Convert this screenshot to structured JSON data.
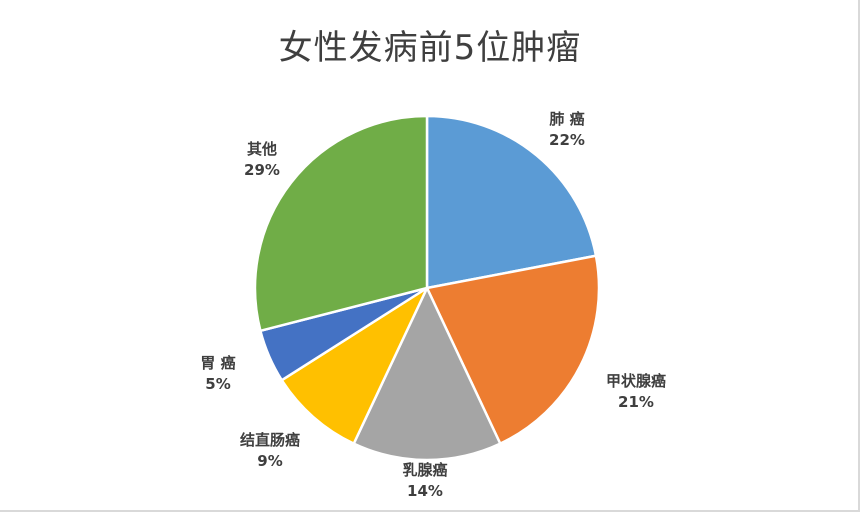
{
  "chart_data": {
    "type": "pie",
    "title": "女性发病前5位肿瘤",
    "categories": [
      "肺 癌",
      "甲状腺癌",
      "乳腺癌",
      "结直肠癌",
      "胃 癌",
      "其他"
    ],
    "values": [
      22,
      21,
      14,
      9,
      5,
      29
    ],
    "value_labels": [
      "22%",
      "21%",
      "14%",
      "9%",
      "5%",
      "29%"
    ],
    "unit": "%",
    "colors": [
      "#5b9bd5",
      "#ed7d31",
      "#a5a5a5",
      "#ffc000",
      "#4472c4",
      "#70ad47"
    ],
    "legend": "none"
  }
}
